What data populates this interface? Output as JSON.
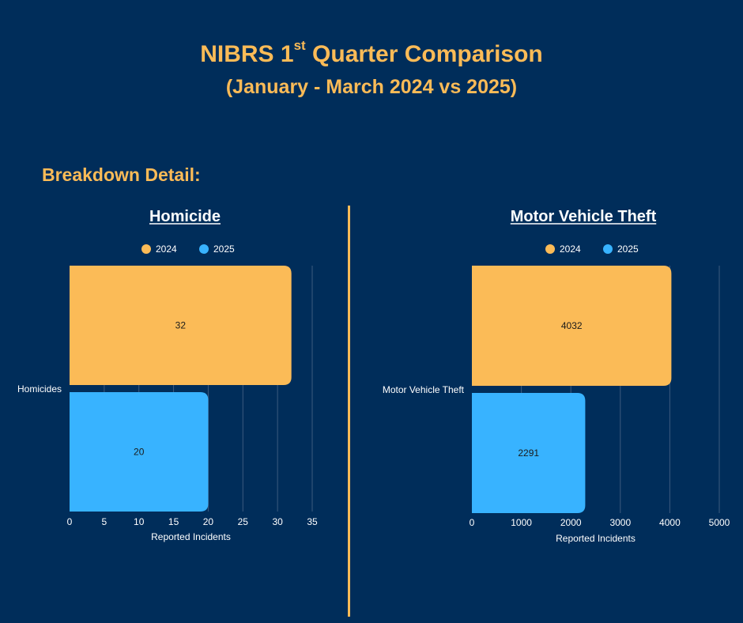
{
  "header": {
    "title_main": "NIBRS 1",
    "title_sup": "st",
    "title_rest": " Quarter Comparison",
    "subtitle": "(January - March 2024 vs 2025)",
    "section_label": "Breakdown Detail:"
  },
  "colors": {
    "background": "#002d5a",
    "accent": "#fbbb57",
    "series_2024": "#fbbb57",
    "series_2025": "#38b3ff",
    "grid": "#3c5a7e"
  },
  "chart_data": [
    {
      "type": "bar",
      "orientation": "horizontal",
      "title": "Homicide",
      "categories": [
        "Homicides"
      ],
      "series": [
        {
          "name": "2024",
          "values": [
            32
          ]
        },
        {
          "name": "2025",
          "values": [
            20
          ]
        }
      ],
      "xlabel": "Reported Incidents",
      "ylabel": "",
      "xlim": [
        0,
        35
      ],
      "xticks": [
        0,
        5,
        10,
        15,
        20,
        25,
        30,
        35
      ],
      "grid": true,
      "legend": "top-center"
    },
    {
      "type": "bar",
      "orientation": "horizontal",
      "title": "Motor Vehicle Theft",
      "categories": [
        "Motor Vehicle Theft"
      ],
      "series": [
        {
          "name": "2024",
          "values": [
            4032
          ]
        },
        {
          "name": "2025",
          "values": [
            2291
          ]
        }
      ],
      "xlabel": "Reported Incidents",
      "ylabel": "",
      "xlim": [
        0,
        5000
      ],
      "xticks": [
        0,
        1000,
        2000,
        3000,
        4000,
        5000
      ],
      "grid": true,
      "legend": "top-center"
    }
  ]
}
